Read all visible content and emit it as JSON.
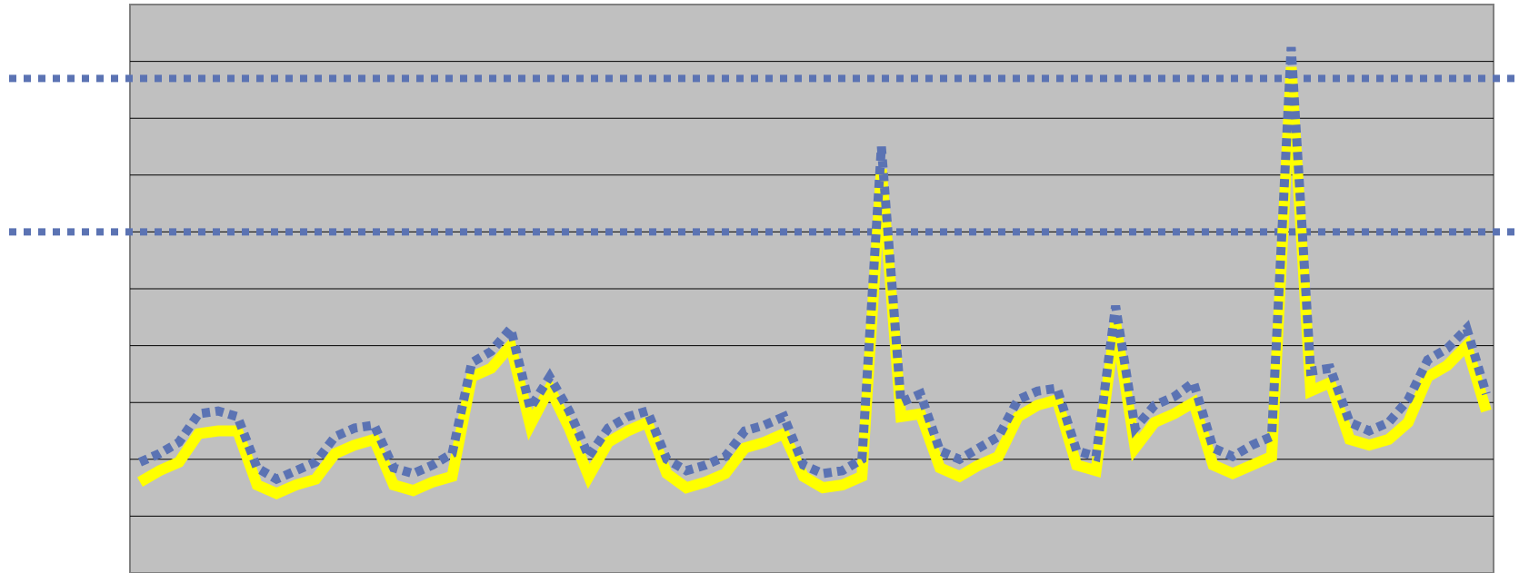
{
  "chart_data": {
    "type": "line",
    "title": "",
    "xlabel": "",
    "ylabel": "",
    "ylim": [
      0,
      10
    ],
    "gridlines_y": [
      1,
      2,
      3,
      4,
      5,
      6,
      7,
      8,
      9
    ],
    "grid": true,
    "legend": "none",
    "x": [
      0,
      1,
      2,
      3,
      4,
      5,
      6,
      7,
      8,
      9,
      10,
      11,
      12,
      13,
      14,
      15,
      16,
      17,
      18,
      19,
      20,
      21,
      22,
      23,
      24,
      25,
      26,
      27,
      28,
      29,
      30,
      31,
      32,
      33,
      34,
      35,
      36,
      37,
      38,
      39,
      40,
      41,
      42,
      43,
      44,
      45,
      46,
      47,
      48,
      49,
      50,
      51,
      52,
      53,
      54,
      55,
      56,
      57,
      58,
      59,
      60,
      61,
      62,
      63,
      64,
      65,
      66,
      67,
      68,
      69
    ],
    "series": [
      {
        "style": "solid",
        "color": "#ffff00",
        "values": [
          1.6,
          1.8,
          1.95,
          2.45,
          2.5,
          2.5,
          1.55,
          1.4,
          1.55,
          1.65,
          2.1,
          2.25,
          2.35,
          1.55,
          1.45,
          1.6,
          1.7,
          3.45,
          3.6,
          4.0,
          2.6,
          3.25,
          2.55,
          1.7,
          2.3,
          2.5,
          2.65,
          1.75,
          1.5,
          1.6,
          1.75,
          2.2,
          2.3,
          2.45,
          1.7,
          1.5,
          1.55,
          1.7,
          7.1,
          2.75,
          2.8,
          1.85,
          1.7,
          1.9,
          2.05,
          2.75,
          2.95,
          3.05,
          1.9,
          1.8,
          4.4,
          2.2,
          2.65,
          2.8,
          3.0,
          1.9,
          1.75,
          1.9,
          2.05,
          8.9,
          3.2,
          3.35,
          2.35,
          2.25,
          2.35,
          2.65,
          3.45,
          3.65,
          4.0,
          2.85
        ]
      },
      {
        "style": "dotted",
        "color": "#5b73b3",
        "values": [
          1.95,
          2.1,
          2.3,
          2.8,
          2.85,
          2.75,
          1.85,
          1.65,
          1.8,
          1.95,
          2.4,
          2.55,
          2.6,
          1.85,
          1.75,
          1.9,
          2.1,
          3.7,
          3.9,
          4.3,
          2.9,
          3.45,
          2.85,
          2.05,
          2.55,
          2.75,
          2.85,
          2.0,
          1.8,
          1.9,
          2.05,
          2.5,
          2.6,
          2.75,
          1.9,
          1.75,
          1.8,
          2.0,
          7.5,
          3.0,
          3.15,
          2.15,
          2.0,
          2.2,
          2.4,
          3.05,
          3.2,
          3.25,
          2.15,
          2.05,
          4.7,
          2.55,
          2.95,
          3.1,
          3.35,
          2.2,
          2.05,
          2.25,
          2.4,
          9.25,
          3.55,
          3.6,
          2.65,
          2.5,
          2.65,
          3.05,
          3.75,
          3.95,
          4.3,
          3.15
        ]
      }
    ],
    "reference_lines": [
      {
        "y": 8.7,
        "style": "dotted",
        "color": "#5b73b3"
      },
      {
        "y": 6.0,
        "style": "dotted",
        "color": "#5b73b3"
      }
    ],
    "plot_background": "#c0c0c0",
    "gridline_color": "#000000"
  }
}
